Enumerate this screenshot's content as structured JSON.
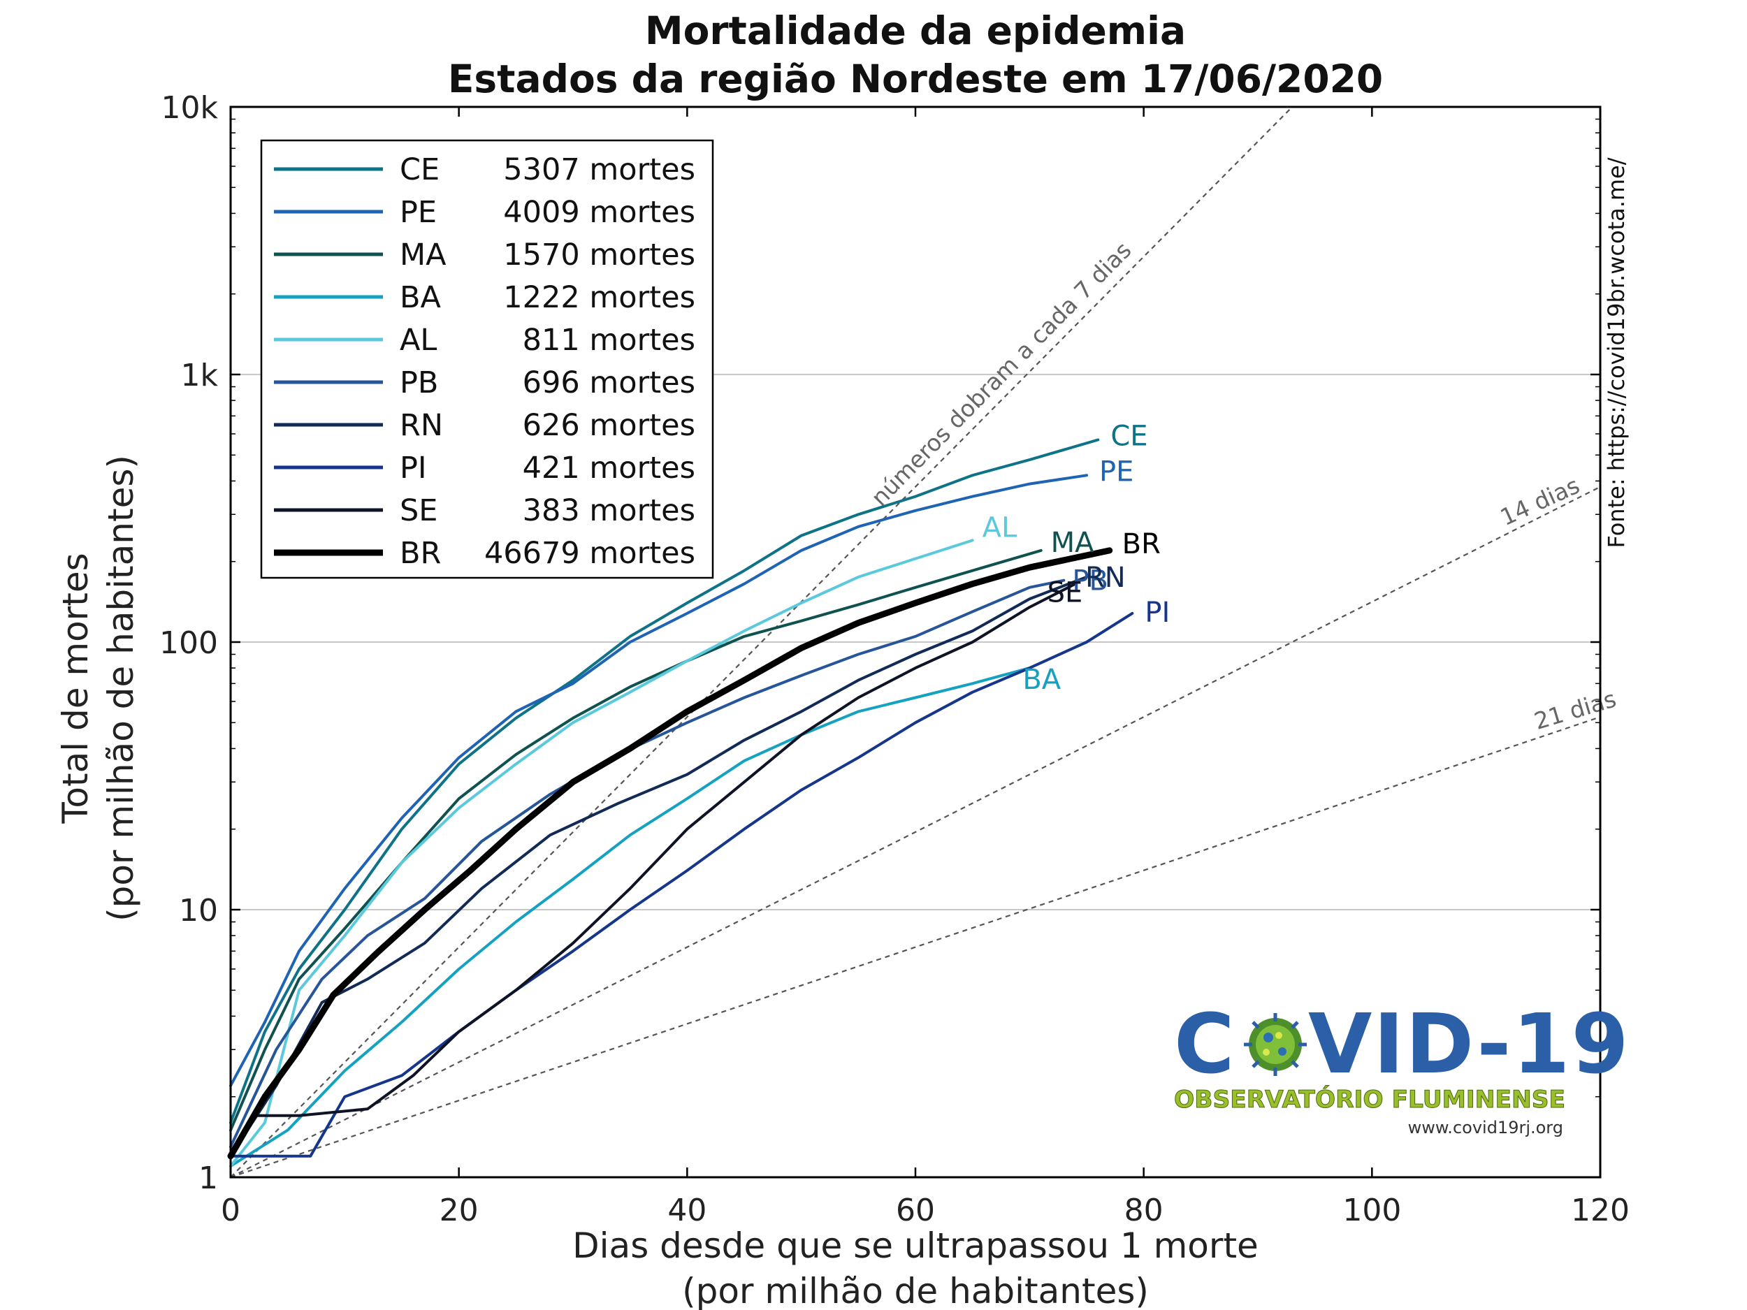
{
  "chart_data": {
    "type": "line",
    "title": "Mortalidade da epidemia",
    "subtitle": "Estados da região Nordeste em 17/06/2020",
    "xlabel": "Dias desde que se ultrapassou 1 morte",
    "xlabel2": "(por milhão de habitantes)",
    "ylabel": "Total de mortes",
    "ylabel2": "(por milhão de habitantes)",
    "xlim": [
      0,
      120
    ],
    "ylim": [
      1,
      10000
    ],
    "yscale": "log",
    "xticks": [
      "0",
      "20",
      "40",
      "60",
      "80",
      "100",
      "120"
    ],
    "yticks": [
      "1",
      "10",
      "100",
      "1k",
      "10k"
    ],
    "grid": "horizontal",
    "legend_position": "top-left",
    "source": "Fonte: https://covid19br.wcota.me/",
    "reference_lines": [
      {
        "label": "números dobram a cada 7 dias",
        "doubling_days": 7
      },
      {
        "label": "14 dias",
        "doubling_days": 14
      },
      {
        "label": "21 dias",
        "doubling_days": 21
      }
    ],
    "series": [
      {
        "name": "CE",
        "legend": "5307 mortes",
        "color": "#0f7387",
        "width": 4,
        "points": [
          [
            0,
            1.6
          ],
          [
            3,
            3.5
          ],
          [
            6,
            6
          ],
          [
            10,
            10
          ],
          [
            15,
            20
          ],
          [
            20,
            35
          ],
          [
            25,
            52
          ],
          [
            30,
            72
          ],
          [
            35,
            105
          ],
          [
            40,
            140
          ],
          [
            45,
            185
          ],
          [
            50,
            250
          ],
          [
            55,
            300
          ],
          [
            60,
            350
          ],
          [
            65,
            420
          ],
          [
            70,
            480
          ],
          [
            76,
            570
          ]
        ]
      },
      {
        "name": "PE",
        "legend": "4009 mortes",
        "color": "#1f63b4",
        "width": 4,
        "points": [
          [
            0,
            2.2
          ],
          [
            3,
            3.8
          ],
          [
            6,
            7
          ],
          [
            10,
            12
          ],
          [
            15,
            22
          ],
          [
            20,
            37
          ],
          [
            25,
            55
          ],
          [
            30,
            70
          ],
          [
            35,
            100
          ],
          [
            40,
            128
          ],
          [
            45,
            165
          ],
          [
            50,
            220
          ],
          [
            55,
            270
          ],
          [
            60,
            310
          ],
          [
            65,
            350
          ],
          [
            70,
            390
          ],
          [
            75,
            420
          ]
        ]
      },
      {
        "name": "MA",
        "legend": "1570 mortes",
        "color": "#10524f",
        "width": 4,
        "points": [
          [
            0,
            1.5
          ],
          [
            3,
            3
          ],
          [
            6,
            5.5
          ],
          [
            10,
            8.5
          ],
          [
            15,
            15
          ],
          [
            20,
            26
          ],
          [
            25,
            38
          ],
          [
            30,
            52
          ],
          [
            35,
            68
          ],
          [
            40,
            85
          ],
          [
            45,
            105
          ],
          [
            50,
            120
          ],
          [
            55,
            138
          ],
          [
            60,
            160
          ],
          [
            65,
            185
          ],
          [
            71,
            220
          ]
        ]
      },
      {
        "name": "BA",
        "legend": "1222 mortes",
        "color": "#15a2c0",
        "width": 4,
        "points": [
          [
            0,
            1.1
          ],
          [
            5,
            1.5
          ],
          [
            10,
            2.5
          ],
          [
            15,
            3.8
          ],
          [
            20,
            6
          ],
          [
            25,
            9
          ],
          [
            30,
            13
          ],
          [
            35,
            19
          ],
          [
            40,
            26
          ],
          [
            45,
            36
          ],
          [
            50,
            45
          ],
          [
            55,
            55
          ],
          [
            60,
            62
          ],
          [
            65,
            70
          ],
          [
            70,
            80
          ]
        ]
      },
      {
        "name": "AL",
        "legend": "811 mortes",
        "color": "#5bc9dc",
        "width": 4,
        "points": [
          [
            0,
            1.1
          ],
          [
            3,
            1.6
          ],
          [
            6,
            5
          ],
          [
            10,
            8
          ],
          [
            15,
            15
          ],
          [
            20,
            24
          ],
          [
            25,
            35
          ],
          [
            30,
            50
          ],
          [
            35,
            65
          ],
          [
            40,
            85
          ],
          [
            45,
            110
          ],
          [
            50,
            140
          ],
          [
            55,
            175
          ],
          [
            60,
            205
          ],
          [
            65,
            240
          ]
        ]
      },
      {
        "name": "PB",
        "legend": "696 mortes",
        "color": "#27559a",
        "width": 4,
        "points": [
          [
            0,
            1.3
          ],
          [
            4,
            3
          ],
          [
            8,
            5.5
          ],
          [
            12,
            8
          ],
          [
            17,
            11
          ],
          [
            22,
            18
          ],
          [
            28,
            27
          ],
          [
            34,
            38
          ],
          [
            40,
            50
          ],
          [
            45,
            62
          ],
          [
            50,
            75
          ],
          [
            55,
            90
          ],
          [
            60,
            105
          ],
          [
            65,
            130
          ],
          [
            70,
            160
          ],
          [
            73,
            170
          ]
        ]
      },
      {
        "name": "RN",
        "legend": "626 mortes",
        "color": "#112a56",
        "width": 4,
        "points": [
          [
            0,
            1.2
          ],
          [
            4,
            2.2
          ],
          [
            8,
            4.5
          ],
          [
            12,
            5.5
          ],
          [
            17,
            7.5
          ],
          [
            22,
            12
          ],
          [
            28,
            19
          ],
          [
            34,
            25
          ],
          [
            40,
            32
          ],
          [
            45,
            43
          ],
          [
            50,
            55
          ],
          [
            55,
            72
          ],
          [
            60,
            90
          ],
          [
            65,
            110
          ],
          [
            70,
            145
          ],
          [
            75,
            175
          ]
        ]
      },
      {
        "name": "PI",
        "legend": "421 mortes",
        "color": "#16368c",
        "width": 4,
        "points": [
          [
            0,
            1.2
          ],
          [
            7,
            1.2
          ],
          [
            10,
            2
          ],
          [
            15,
            2.4
          ],
          [
            20,
            3.5
          ],
          [
            25,
            5
          ],
          [
            30,
            7
          ],
          [
            35,
            10
          ],
          [
            40,
            14
          ],
          [
            45,
            20
          ],
          [
            50,
            28
          ],
          [
            55,
            37
          ],
          [
            60,
            50
          ],
          [
            65,
            65
          ],
          [
            70,
            80
          ],
          [
            75,
            100
          ],
          [
            79,
            128
          ]
        ]
      },
      {
        "name": "SE",
        "legend": "383 mortes",
        "color": "#0e1425",
        "width": 4,
        "points": [
          [
            0,
            1.2
          ],
          [
            2,
            1.7
          ],
          [
            6,
            1.7
          ],
          [
            12,
            1.8
          ],
          [
            16,
            2.4
          ],
          [
            20,
            3.5
          ],
          [
            25,
            5
          ],
          [
            30,
            7.5
          ],
          [
            35,
            12
          ],
          [
            40,
            20
          ],
          [
            45,
            30
          ],
          [
            50,
            45
          ],
          [
            55,
            62
          ],
          [
            60,
            80
          ],
          [
            65,
            100
          ],
          [
            70,
            135
          ],
          [
            74,
            165
          ]
        ]
      },
      {
        "name": "BR",
        "legend": "46679 mortes",
        "color": "#000000",
        "width": 9,
        "points": [
          [
            0,
            1.2
          ],
          [
            3,
            2
          ],
          [
            6,
            3
          ],
          [
            9,
            4.8
          ],
          [
            13,
            7
          ],
          [
            17,
            10
          ],
          [
            21,
            14
          ],
          [
            25,
            20
          ],
          [
            30,
            30
          ],
          [
            35,
            40
          ],
          [
            40,
            55
          ],
          [
            45,
            72
          ],
          [
            50,
            95
          ],
          [
            55,
            118
          ],
          [
            60,
            140
          ],
          [
            65,
            165
          ],
          [
            70,
            190
          ],
          [
            77,
            220
          ]
        ]
      }
    ]
  },
  "logo": {
    "main_prefix": "C",
    "main_suffix": "VID-19",
    "sub": "OBSERVATÓRIO FLUMINENSE",
    "url": "www.covid19rj.org"
  }
}
